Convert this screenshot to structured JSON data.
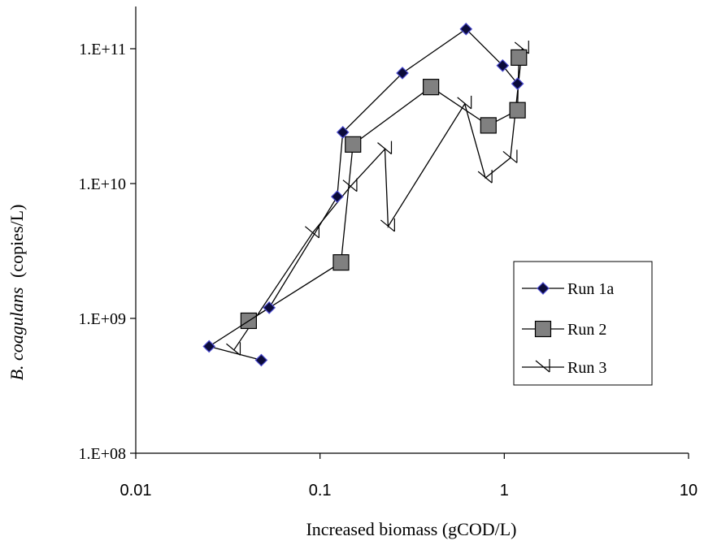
{
  "chart_data": {
    "type": "scatter",
    "xlabel": "Increased biomass (gCOD/L)",
    "ylabel_italic": "B. coagulans",
    "ylabel_unit": "(copies/L)",
    "x_scale": "log",
    "y_scale": "log",
    "xlim": [
      0.01,
      10
    ],
    "ylim": [
      100000000.0,
      200000000000.0
    ],
    "x_ticks": [
      {
        "value": 0.01,
        "label": "0.01"
      },
      {
        "value": 0.1,
        "label": "0.1"
      },
      {
        "value": 1,
        "label": "1"
      },
      {
        "value": 10,
        "label": "10"
      }
    ],
    "y_ticks": [
      {
        "value": 100000000.0,
        "label": "1.E+08"
      },
      {
        "value": 1000000000.0,
        "label": "1.E+09"
      },
      {
        "value": 10000000000.0,
        "label": "1.E+10"
      },
      {
        "value": 100000000000.0,
        "label": "1.E+11"
      }
    ],
    "grid": false,
    "legend_position": "right",
    "series": [
      {
        "name": "Run 1a",
        "marker": "diamond",
        "color": "#0b0b3a",
        "x": [
          0.048,
          0.025,
          0.053,
          0.124,
          0.133,
          0.28,
          0.62,
          0.98,
          1.18
        ],
        "y": [
          490000000.0,
          620000000.0,
          1200000000.0,
          8000000000.0,
          24000000000.0,
          66000000000.0,
          140000000000.0,
          75000000000.0,
          55000000000.0
        ]
      },
      {
        "name": "Run 2",
        "marker": "square",
        "color": "#808080",
        "x": [
          0.041,
          0.13,
          0.151,
          0.4,
          0.82,
          1.18,
          1.2
        ],
        "y": [
          960000000.0,
          2600000000.0,
          19500000000.0,
          52000000000.0,
          27000000000.0,
          35000000000.0,
          86000000000.0
        ]
      },
      {
        "name": "Run 3",
        "marker": "arrow",
        "color": "#000000",
        "x": [
          0.034,
          0.091,
          0.146,
          0.225,
          0.234,
          0.61,
          0.79,
          1.08,
          1.25
        ],
        "y": [
          580000000.0,
          4300000000.0,
          9500000000.0,
          18000000000.0,
          4800000000.0,
          39000000000.0,
          11000000000.0,
          15500000000.0,
          100000000000.0
        ]
      }
    ]
  }
}
